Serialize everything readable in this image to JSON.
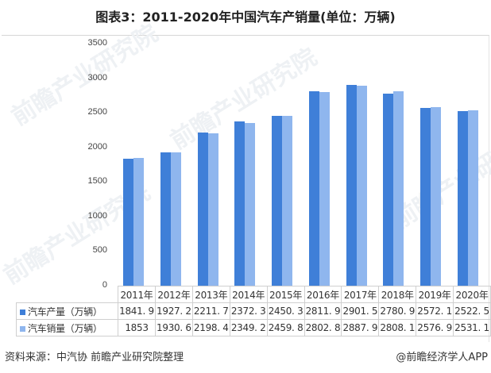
{
  "title": "图表3：2011-2020年中国汽车产销量(单位：万辆)",
  "chart_data": {
    "type": "bar",
    "title": "图表3：2011-2020年中国汽车产销量(单位：万辆)",
    "xlabel": "",
    "ylabel": "",
    "ylim": [
      0,
      3500
    ],
    "yticks": [
      0,
      500,
      1000,
      1500,
      2000,
      2500,
      3000,
      3500
    ],
    "grid": false,
    "legend_position": "data-table",
    "categories": [
      "2011年",
      "2012年",
      "2013年",
      "2014年",
      "2015年",
      "2016年",
      "2017年",
      "2018年",
      "2019年",
      "2020年"
    ],
    "series": [
      {
        "name": "汽车产量（万辆）",
        "color": "#3f7fd8",
        "values": [
          1841.9,
          1927.2,
          2211.7,
          2372.3,
          2450.3,
          2811.9,
          2901.5,
          2780.9,
          2572.1,
          2522.5
        ],
        "labels": [
          "1841. 9",
          "1927. 2",
          "2211. 7",
          "2372. 3",
          "2450. 3",
          "2811. 9",
          "2901. 5",
          "2780. 9",
          "2572. 1",
          "2522. 5"
        ]
      },
      {
        "name": "汽车销量（万辆）",
        "color": "#8fb6ee",
        "values": [
          1853,
          1930.6,
          2198.4,
          2349.2,
          2459.8,
          2802.8,
          2887.9,
          2808.1,
          2576.9,
          2531.1
        ],
        "labels": [
          "1853",
          "1930. 6",
          "2198. 4",
          "2349. 2",
          "2459. 8",
          "2802. 8",
          "2887. 9",
          "2808. 1",
          "2576. 9",
          "2531. 1"
        ]
      }
    ]
  },
  "footer": {
    "source": "资料来源：中汽协 前瞻产业研究院整理",
    "credit": "@前瞻经济学人APP"
  },
  "watermark": "前瞻产业研究院"
}
